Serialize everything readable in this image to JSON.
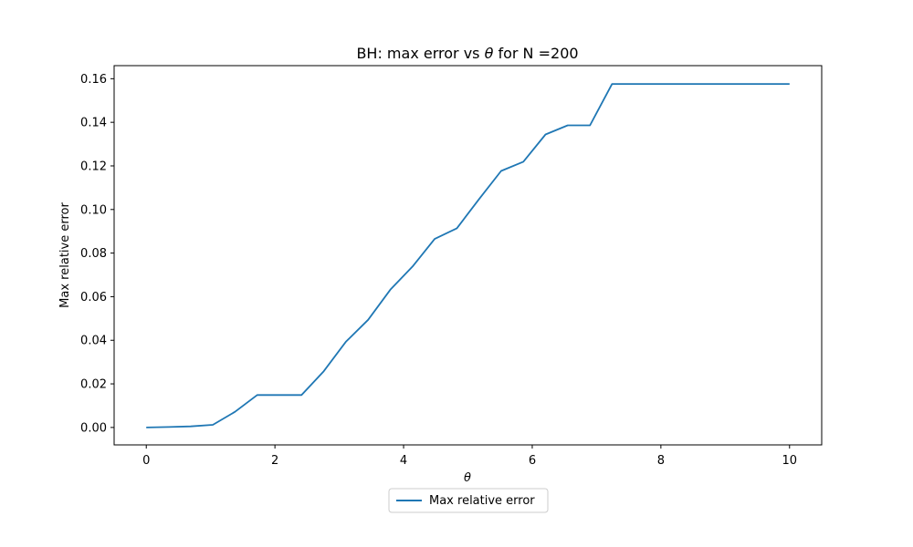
{
  "chart_data": {
    "type": "line",
    "title_prefix": "BH: max error vs ",
    "title_symbol": "θ",
    "title_suffix": " for N =200",
    "xlabel": "θ",
    "ylabel": "Max relative error",
    "xlim": [
      -0.5,
      10.5
    ],
    "ylim": [
      -0.008,
      0.166
    ],
    "xticks": [
      0,
      2,
      4,
      6,
      8,
      10
    ],
    "xtick_labels": [
      "0",
      "2",
      "4",
      "6",
      "8",
      "10"
    ],
    "yticks": [
      0.0,
      0.02,
      0.04,
      0.06,
      0.08,
      0.1,
      0.12,
      0.14,
      0.16
    ],
    "ytick_labels": [
      "0.00",
      "0.02",
      "0.04",
      "0.06",
      "0.08",
      "0.10",
      "0.12",
      "0.14",
      "0.16"
    ],
    "grid": false,
    "legend_position": "below-center",
    "series": [
      {
        "name": "Max relative error",
        "color": "#1f77b4",
        "x": [
          0,
          0.345,
          0.69,
          1.034,
          1.379,
          1.724,
          2.069,
          2.414,
          2.759,
          3.103,
          3.448,
          3.793,
          4.138,
          4.483,
          4.828,
          5.172,
          5.517,
          5.862,
          6.207,
          6.552,
          6.897,
          7.241,
          7.586,
          7.931,
          8.276,
          8.621,
          8.966,
          9.31,
          9.655,
          10.0
        ],
        "y": [
          0.0,
          0.0002,
          0.0005,
          0.0012,
          0.0072,
          0.0149,
          0.0149,
          0.0149,
          0.0258,
          0.0393,
          0.0494,
          0.0632,
          0.0738,
          0.0865,
          0.0914,
          0.1047,
          0.1177,
          0.1219,
          0.1344,
          0.1386,
          0.1386,
          0.1576,
          0.1576,
          0.1576,
          0.1576,
          0.1576,
          0.1576,
          0.1576,
          0.1576,
          0.1576
        ]
      }
    ]
  }
}
